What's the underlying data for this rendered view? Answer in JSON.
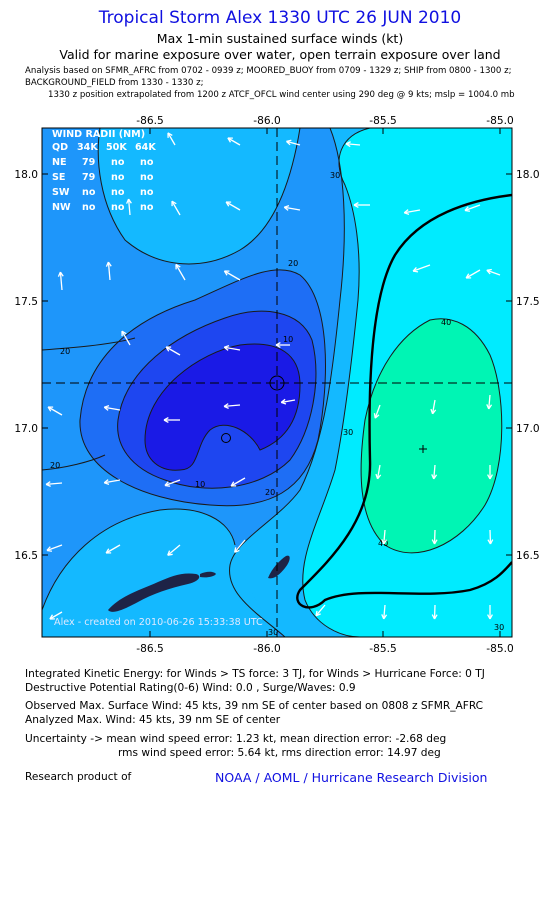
{
  "header": {
    "title": "Tropical Storm Alex 1330 UTC 26 JUN 2010",
    "subtitle": "Max 1-min sustained surface winds (kt)",
    "subtitle2": "Valid for marine exposure over water, open terrain exposure over land",
    "analysis_line": "Analysis based on   SFMR_AFRC from 0702 - 0939 z;  MOORED_BUOY from 0709 - 1329 z;  SHIP from 0800 - 1300 z;",
    "background_line": "BACKGROUND_FIELD from 1330 - 1330 z;",
    "position_line": "1330 z position extrapolated from 1200 z ATCF_OFCL wind center using 290 deg @ 9 kts;  mslp = 1004.0 mb"
  },
  "map": {
    "lon_ticks": [
      "-86.5",
      "-86.0",
      "-85.5",
      "-85.0"
    ],
    "lat_ticks": [
      "18.0",
      "17.5",
      "17.0",
      "16.5"
    ],
    "wind_radii": {
      "header": [
        "QD",
        "34K",
        "50K",
        "64K"
      ],
      "title": "WIND RADII (NM)",
      "rows": [
        {
          "q": "NE",
          "v": [
            "79",
            "no",
            "no"
          ]
        },
        {
          "q": "SE",
          "v": [
            "79",
            "no",
            "no"
          ]
        },
        {
          "q": "SW",
          "v": [
            "no",
            "no",
            "no"
          ]
        },
        {
          "q": "NW",
          "v": [
            "no",
            "no",
            "no"
          ]
        }
      ]
    },
    "credit": "Alex - created on 2010-06-26 15:33:38 UTC",
    "contour_labels": [
      "10",
      "10",
      "20",
      "20",
      "20",
      "20",
      "30",
      "30",
      "30",
      "30",
      "40",
      "40"
    ],
    "colors": {
      "lt10": "#1a1ae6",
      "10-15": "#1e46f0",
      "15-20": "#1e6ef5",
      "20-25": "#1e96fa",
      "25-30": "#14b9ff",
      "30-40": "#00ebff",
      "gt40": "#00f5b4",
      "land": "#1e2346"
    }
  },
  "info": {
    "ike": "Integrated Kinetic Energy:  for Winds > TS force: 3 TJ,  for Winds > Hurricane Force: 0 TJ",
    "drp": "Destructive Potential Rating(0-6)   Wind: 0.0 , Surge/Waves: 0.9",
    "obs_max": "Observed Max. Surface Wind: 45 kts, 39 nm SE of center based on 0808 z SFMR_AFRC",
    "analyzed_max": "Analyzed Max. Wind: 45 kts, 39 nm SE of center",
    "uncert1": "Uncertainty -> mean wind speed error: 1.23 kt,    mean direction error:  -2.68 deg",
    "uncert2": "rms wind speed error: 5.64 kt,   rms direction error: 14.97 deg",
    "research": "Research product of",
    "org": "NOAA / AOML / Hurricane Research Division"
  }
}
